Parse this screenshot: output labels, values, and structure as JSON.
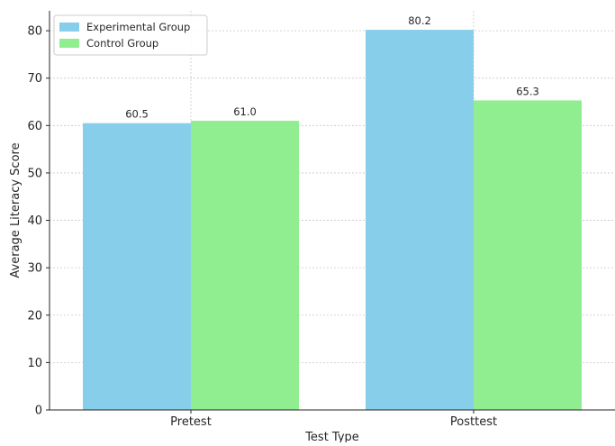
{
  "chart_data": {
    "type": "bar",
    "title": "",
    "xlabel": "Test Type",
    "ylabel": "Average Literacy Score",
    "categories": [
      "Pretest",
      "Posttest"
    ],
    "series": [
      {
        "name": "Experimental Group",
        "values": [
          60.5,
          80.2
        ],
        "labels": [
          "60.5",
          "80.2"
        ],
        "color": "#87CEEB"
      },
      {
        "name": "Control Group",
        "values": [
          61.0,
          65.3
        ],
        "labels": [
          "61.0",
          "65.3"
        ],
        "color": "#90EE90"
      }
    ],
    "ylim": [
      0,
      84.2
    ],
    "yticks": [
      0,
      10,
      20,
      30,
      40,
      50,
      60,
      70,
      80
    ],
    "ytick_labels": [
      "0",
      "10",
      "20",
      "30",
      "40",
      "50",
      "60",
      "70",
      "80"
    ],
    "grid": true,
    "legend_position": "upper-left"
  }
}
